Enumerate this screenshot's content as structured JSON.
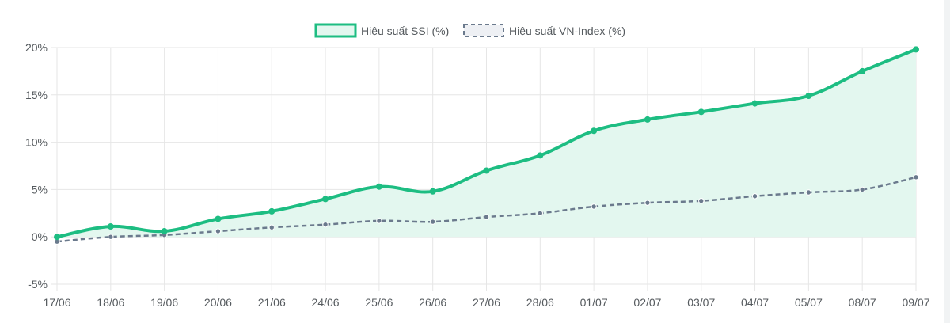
{
  "chart_data": {
    "type": "line",
    "title": "",
    "xlabel": "",
    "ylabel": "",
    "categories": [
      "17/06",
      "18/06",
      "19/06",
      "20/06",
      "21/06",
      "24/06",
      "25/06",
      "26/06",
      "27/06",
      "28/06",
      "01/07",
      "02/07",
      "03/07",
      "04/07",
      "05/07",
      "08/07",
      "09/07"
    ],
    "ylim": [
      -5,
      20
    ],
    "yticks": [
      -5,
      0,
      5,
      10,
      15,
      20
    ],
    "ytick_labels": [
      "-5%",
      "0%",
      "5%",
      "10%",
      "15%",
      "20%"
    ],
    "grid": true,
    "legend_position": "top",
    "series": [
      {
        "name": "Hiệu suất SSI (%)",
        "values": [
          0.0,
          1.1,
          0.6,
          1.9,
          2.7,
          4.0,
          5.3,
          4.8,
          7.0,
          8.6,
          11.2,
          12.4,
          13.2,
          14.1,
          14.9,
          17.5,
          19.8
        ],
        "color": "#1dbd82",
        "fill": "#e3f7ef",
        "style": "solid"
      },
      {
        "name": "Hiệu suất VN-Index (%)",
        "values": [
          -0.5,
          0.0,
          0.2,
          0.6,
          1.0,
          1.3,
          1.7,
          1.6,
          2.1,
          2.5,
          3.2,
          3.6,
          3.8,
          4.3,
          4.7,
          5.0,
          6.3
        ],
        "color": "#6b7a8d",
        "style": "dashed"
      }
    ]
  }
}
